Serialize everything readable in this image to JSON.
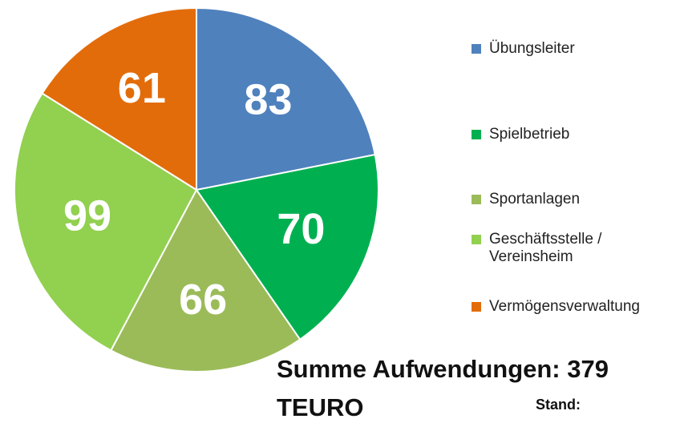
{
  "chart_data": {
    "type": "pie",
    "categories": [
      "Übungsleiter",
      "Spielbetrieb",
      "Sportanlagen",
      "Geschäftsstelle / Vereinsheim",
      "Vermögensverwaltung"
    ],
    "values": [
      83,
      70,
      66,
      99,
      61
    ],
    "colors": [
      "#4f81bd",
      "#00b050",
      "#9bbb59",
      "#92d050",
      "#e36c0a"
    ],
    "legend": "right",
    "annotations": [
      "Summe Aufwendungen: 379 TEURO",
      "Stand:"
    ]
  }
}
